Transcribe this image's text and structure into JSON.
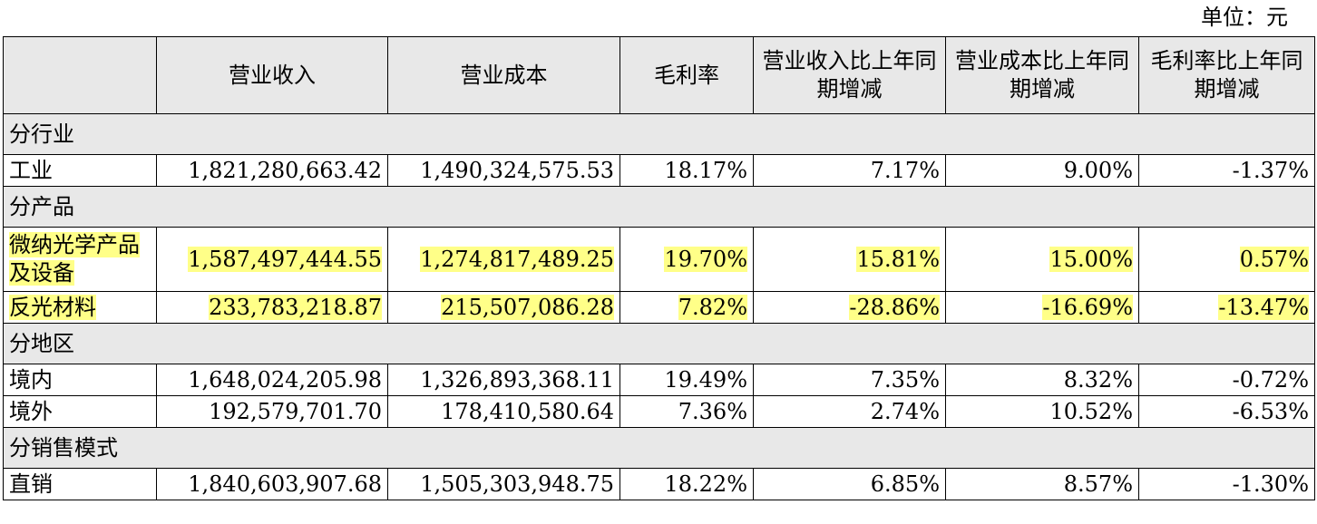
{
  "unit_label": "单位：元",
  "headers": [
    "",
    "营业收入",
    "营业成本",
    "毛利率",
    "营业收入比上年同期增减",
    "营业成本比上年同期增减",
    "毛利率比上年同期增减"
  ],
  "sections": [
    {
      "title": "分行业",
      "rows": [
        {
          "label": "工业",
          "values": [
            "1,821,280,663.42",
            "1,490,324,575.53",
            "18.17%",
            "7.17%",
            "9.00%",
            "-1.37%"
          ],
          "highlight": false
        }
      ]
    },
    {
      "title": "分产品",
      "rows": [
        {
          "label": "微纳光学产品及设备",
          "values": [
            "1,587,497,444.55",
            "1,274,817,489.25",
            "19.70%",
            "15.81%",
            "15.00%",
            "0.57%"
          ],
          "highlight": true
        },
        {
          "label": "反光材料",
          "values": [
            "233,783,218.87",
            "215,507,086.28",
            "7.82%",
            "-28.86%",
            "-16.69%",
            "-13.47%"
          ],
          "highlight": true
        }
      ]
    },
    {
      "title": "分地区",
      "rows": [
        {
          "label": "境内",
          "values": [
            "1,648,024,205.98",
            "1,326,893,368.11",
            "19.49%",
            "7.35%",
            "8.32%",
            "-0.72%"
          ],
          "highlight": false
        },
        {
          "label": "境外",
          "values": [
            "192,579,701.70",
            "178,410,580.64",
            "7.36%",
            "2.74%",
            "10.52%",
            "-6.53%"
          ],
          "highlight": false
        }
      ]
    },
    {
      "title": "分销售模式",
      "rows": [
        {
          "label": "直销",
          "values": [
            "1,840,603,907.68",
            "1,505,303,948.75",
            "18.22%",
            "6.85%",
            "8.57%",
            "-1.30%"
          ],
          "highlight": false
        }
      ]
    }
  ],
  "colors": {
    "header_bg": "#e8e8e8",
    "highlight": "#ffff88",
    "border": "#000000"
  }
}
